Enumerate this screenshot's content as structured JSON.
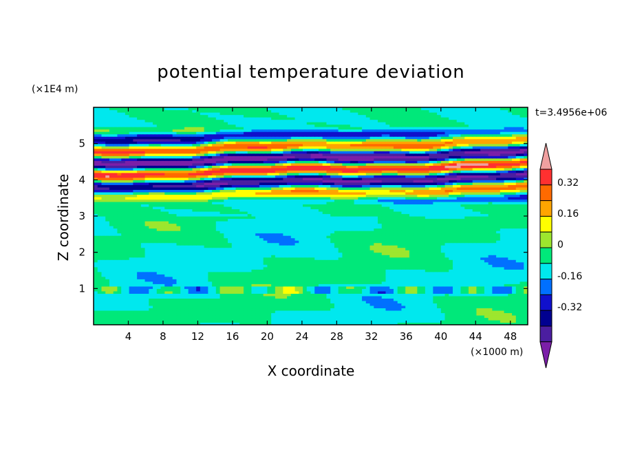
{
  "chart_data": {
    "type": "heatmap",
    "title": "potential temperature deviation",
    "xlabel": "X coordinate",
    "ylabel": "Z coordinate",
    "x_unit": "(×1000 m)",
    "y_unit": "(×1E4 m)",
    "time_label": "t=3.4956e+06",
    "xlim": [
      0,
      50
    ],
    "ylim": [
      0,
      6
    ],
    "x_ticks": [
      "4",
      "8",
      "12",
      "16",
      "20",
      "24",
      "28",
      "32",
      "36",
      "40",
      "44",
      "48"
    ],
    "y_ticks": [
      "1",
      "2",
      "3",
      "4",
      "5"
    ],
    "colorbar": {
      "levels": [
        -0.48,
        -0.4,
        -0.32,
        -0.24,
        -0.16,
        -0.08,
        0,
        0.08,
        0.16,
        0.24,
        0.32,
        0.4,
        0.48
      ],
      "labels": [
        "0.32",
        "0.16",
        "0",
        "-0.16",
        "-0.32"
      ],
      "colors": [
        "#f0a0a0",
        "#ff3030",
        "#ff6a00",
        "#ffa500",
        "#ffff00",
        "#9de62e",
        "#00e87a",
        "#00e8ee",
        "#0070ff",
        "#1010cc",
        "#000090",
        "#4b1ea0",
        "#7b1fa8"
      ]
    },
    "description_bands": [
      {
        "zmin": 0,
        "zmax": 3.4,
        "dominant": "green (0 to +0.08 / 0 to -0.08)"
      },
      {
        "zmin": 3.4,
        "zmax": 5.4,
        "dominant": "strong alternating +/- layers"
      },
      {
        "zmin": 5.4,
        "zmax": 6,
        "dominant": "green"
      }
    ]
  }
}
